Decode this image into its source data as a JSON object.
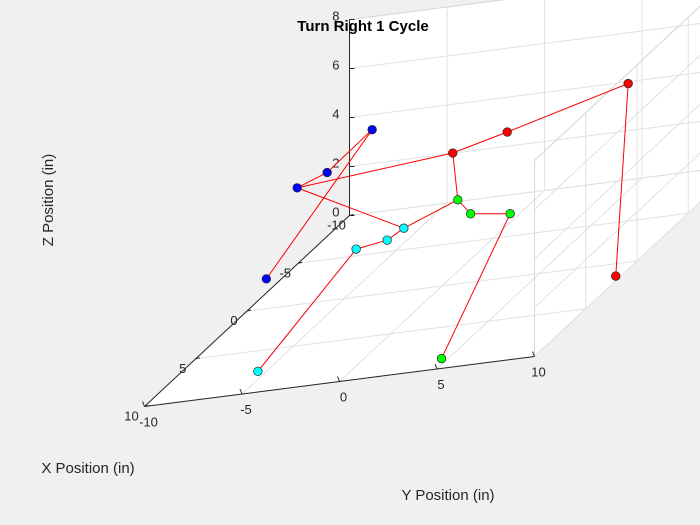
{
  "chart_data": {
    "type": "line3d",
    "title": "Turn Right 1 Cycle",
    "xlabel": "X Position (in)",
    "ylabel": "Y Position (in)",
    "zlabel": "Z Position (in)",
    "xlim": [
      -10,
      10
    ],
    "ylim": [
      -10,
      10
    ],
    "zlim": [
      0,
      8
    ],
    "x_ticks": [
      "-10",
      "-5",
      "0",
      "5",
      "10"
    ],
    "y_ticks": [
      "-10",
      "-5",
      "0",
      "5",
      "10"
    ],
    "z_ticks": [
      "0",
      "2",
      "4",
      "6",
      "8"
    ],
    "grid": true,
    "legs": [
      {
        "color": "#0000ff",
        "points": [
          [
            -3.6,
            -10.9,
            0
          ],
          [
            -4.6,
            -6.0,
            5.2
          ],
          [
            -0.4,
            -6.1,
            5.1
          ],
          [
            1.0,
            -6.9,
            5.1
          ]
        ]
      },
      {
        "color": "#00ffff",
        "points": [
          [
            7.5,
            -5.5,
            0
          ],
          [
            4.0,
            -2.3,
            3.3
          ],
          [
            2.5,
            -1.5,
            3.0
          ],
          [
            2.2,
            -0.8,
            3.3
          ]
        ]
      },
      {
        "color": "#ff0000",
        "points": [
          [
            1.5,
            9.7,
            0
          ],
          [
            -7.7,
            5.5,
            4.7
          ],
          [
            -3.7,
            1.4,
            4.7
          ],
          [
            -2.0,
            -0.5,
            4.7
          ]
        ]
      },
      {
        "color": "#00ff00",
        "points": [
          [
            8.8,
            4.6,
            0
          ],
          [
            2.1,
            4.6,
            3.3
          ],
          [
            1.2,
            2.1,
            3.2
          ],
          [
            -0.4,
            0.6,
            3.3
          ]
        ]
      }
    ],
    "body": [
      [
        1.0,
        -6.9,
        5.1
      ],
      [
        -2.0,
        -0.5,
        4.7
      ],
      [
        -0.4,
        0.6,
        3.3
      ],
      [
        2.2,
        -0.8,
        3.3
      ],
      [
        1.0,
        -6.9,
        5.1
      ]
    ]
  }
}
